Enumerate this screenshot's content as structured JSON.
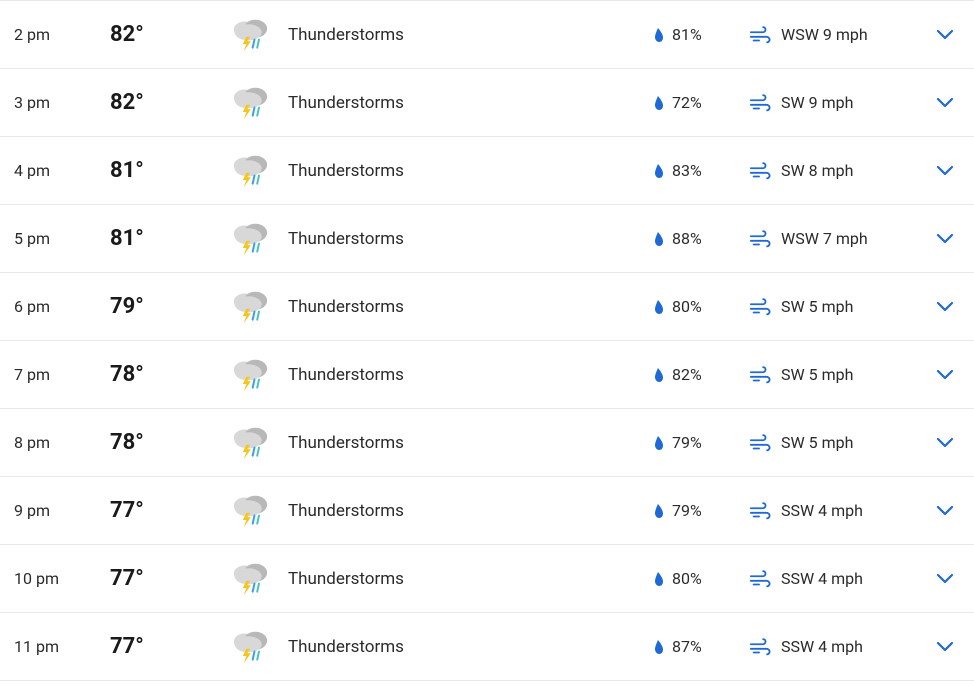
{
  "colors": {
    "row_border": "#e8e8e8",
    "text_primary": "#2b2b2b",
    "text_temp": "#1a1a1a",
    "icon_blue": "#1f69d4",
    "cloud_light": "#d8d8d8",
    "cloud_dark": "#b8b8b8",
    "lightning": "#f5c518",
    "rain_blue": "#3aa0e8",
    "rain_teal": "#49c2c2"
  },
  "forecast": [
    {
      "time": "2 pm",
      "temp": "82°",
      "condition": "Thunderstorms",
      "precip": "81%",
      "wind": "WSW 9 mph"
    },
    {
      "time": "3 pm",
      "temp": "82°",
      "condition": "Thunderstorms",
      "precip": "72%",
      "wind": "SW 9 mph"
    },
    {
      "time": "4 pm",
      "temp": "81°",
      "condition": "Thunderstorms",
      "precip": "83%",
      "wind": "SW 8 mph"
    },
    {
      "time": "5 pm",
      "temp": "81°",
      "condition": "Thunderstorms",
      "precip": "88%",
      "wind": "WSW 7 mph"
    },
    {
      "time": "6 pm",
      "temp": "79°",
      "condition": "Thunderstorms",
      "precip": "80%",
      "wind": "SW 5 mph"
    },
    {
      "time": "7 pm",
      "temp": "78°",
      "condition": "Thunderstorms",
      "precip": "82%",
      "wind": "SW 5 mph"
    },
    {
      "time": "8 pm",
      "temp": "78°",
      "condition": "Thunderstorms",
      "precip": "79%",
      "wind": "SW 5 mph"
    },
    {
      "time": "9 pm",
      "temp": "77°",
      "condition": "Thunderstorms",
      "precip": "79%",
      "wind": "SSW 4 mph"
    },
    {
      "time": "10 pm",
      "temp": "77°",
      "condition": "Thunderstorms",
      "precip": "80%",
      "wind": "SSW 4 mph"
    },
    {
      "time": "11 pm",
      "temp": "77°",
      "condition": "Thunderstorms",
      "precip": "87%",
      "wind": "SSW 4 mph"
    }
  ]
}
